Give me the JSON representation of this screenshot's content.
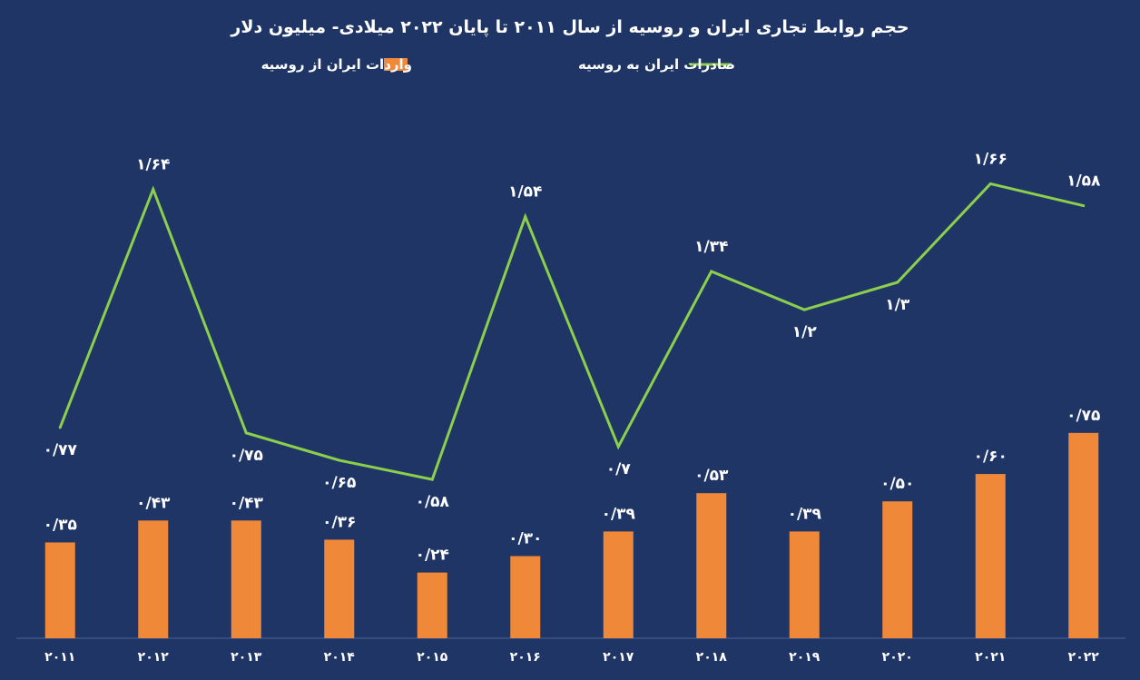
{
  "chart_data": {
    "type": "bar",
    "title": "حجم روابط تجاری ایران و روسیه از سال ۲۰۱۱ تا پایان ۲۰۲۲ میلادی- میلیون دلار",
    "categories": [
      "۲۰۱۱",
      "۲۰۱۲",
      "۲۰۱۳",
      "۲۰۱۴",
      "۲۰۱۵",
      "۲۰۱۶",
      "۲۰۱۷",
      "۲۰۱۸",
      "۲۰۱۹",
      "۲۰۲۰",
      "۲۰۲۱",
      "۲۰۲۲"
    ],
    "series": [
      {
        "name": "واردات ایران از روسیه",
        "type": "bar",
        "color": "#f0883a",
        "values": [
          0.35,
          0.43,
          0.43,
          0.36,
          0.24,
          0.3,
          0.39,
          0.53,
          0.39,
          0.5,
          0.6,
          0.75
        ],
        "labels": [
          "۰/۳۵",
          "۰/۴۳",
          "۰/۴۳",
          "۰/۳۶",
          "۰/۲۴",
          "۰/۳۰",
          "۰/۳۹",
          "۰/۵۳",
          "۰/۳۹",
          "۰/۵۰",
          "۰/۶۰",
          "۰/۷۵"
        ]
      },
      {
        "name": "صادرات ایران به روسیه",
        "type": "line",
        "color": "#8ccf4d",
        "values": [
          0.77,
          1.64,
          0.75,
          0.65,
          0.58,
          1.54,
          0.7,
          1.34,
          1.2,
          1.3,
          1.66,
          1.58
        ],
        "labels": [
          "۰/۷۷",
          "۱/۶۴",
          "۰/۷۵",
          "۰/۶۵",
          "۰/۵۸",
          "۱/۵۴",
          "۰/۷",
          "۱/۳۴",
          "۱/۲",
          "۱/۳",
          "۱/۶۶",
          "۱/۵۸"
        ]
      }
    ],
    "ylim": [
      0,
      1.95
    ],
    "xlabel": "",
    "ylabel": "",
    "grid": false,
    "legend": "top-center"
  },
  "colors": {
    "background": "#1f3566",
    "axis": "#4c6296",
    "text": "#ffffff"
  }
}
